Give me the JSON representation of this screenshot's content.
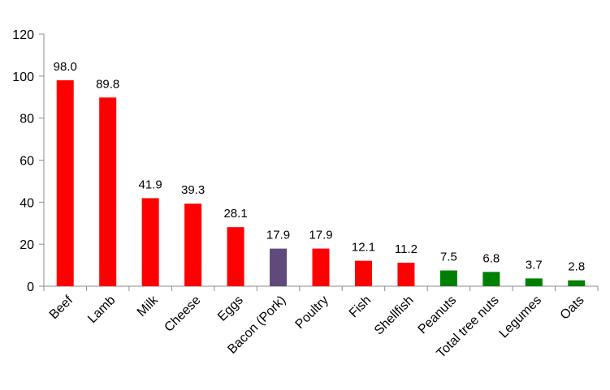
{
  "chart_data": {
    "type": "bar",
    "title": "",
    "xlabel": "",
    "ylabel": "",
    "ylim": [
      0,
      120
    ],
    "yticks": [
      0,
      20,
      40,
      60,
      80,
      100,
      120
    ],
    "grid": false,
    "legend": "none",
    "categories": [
      "Beef",
      "Lamb",
      "Milk",
      "Cheese",
      "Eggs",
      "Bacon (Pork)",
      "Poultry",
      "Fish",
      "Shellfish",
      "Peanuts",
      "Total tree nuts",
      "Legumes",
      "Oats"
    ],
    "values": [
      98.0,
      89.8,
      41.9,
      39.3,
      28.1,
      17.9,
      17.9,
      12.1,
      11.2,
      7.5,
      6.8,
      3.7,
      2.8
    ],
    "data_labels": [
      "98.0",
      "89.8",
      "41.9",
      "39.3",
      "28.1",
      "17.9",
      "17.9",
      "12.1",
      "11.2",
      "7.5",
      "6.8",
      "3.7",
      "2.8"
    ],
    "bar_colors": [
      "#ff0000",
      "#ff0000",
      "#ff0000",
      "#ff0000",
      "#ff0000",
      "#604a7b",
      "#ff0000",
      "#ff0000",
      "#ff0000",
      "#008000",
      "#008000",
      "#008000",
      "#008000"
    ]
  },
  "colors": {
    "axis": "#8c8c8c",
    "text": "#000000"
  }
}
